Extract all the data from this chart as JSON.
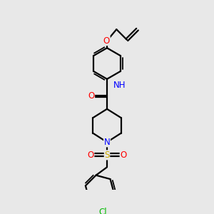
{
  "bg_color": "#e8e8e8",
  "bond_color": "#000000",
  "bond_width": 1.6,
  "atom_colors": {
    "N": "#0000ff",
    "O": "#ff0000",
    "S": "#ccaa00",
    "Cl": "#00bb00",
    "H": "#888888",
    "C": "#000000"
  },
  "font_size_atom": 8.5
}
